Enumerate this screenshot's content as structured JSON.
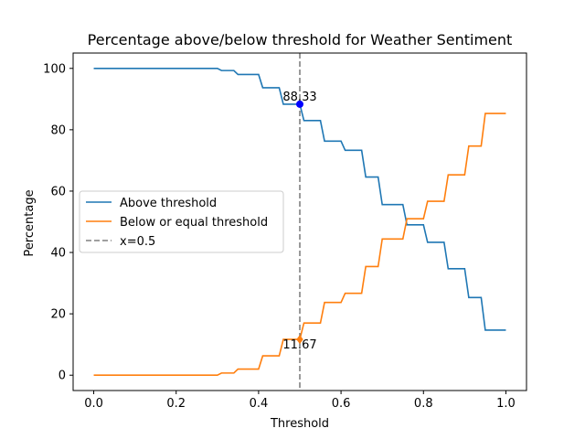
{
  "chart_data": {
    "type": "line",
    "title": "Percentage above/below threshold for Weather Sentiment",
    "xlabel": "Threshold",
    "ylabel": "Percentage",
    "xlim": [
      -0.05,
      1.05
    ],
    "ylim": [
      -5,
      105
    ],
    "x_ticks": [
      0.0,
      0.2,
      0.4,
      0.6,
      0.8,
      1.0
    ],
    "x_tick_labels": [
      "0.0",
      "0.2",
      "0.4",
      "0.6",
      "0.8",
      "1.0"
    ],
    "y_ticks": [
      0,
      20,
      40,
      60,
      80,
      100
    ],
    "y_tick_labels": [
      "0",
      "20",
      "40",
      "60",
      "80",
      "100"
    ],
    "grid": false,
    "legend_position": "center-left",
    "series": [
      {
        "name": "Above threshold",
        "color": "#1f77b4",
        "x": [
          0.0,
          0.3,
          0.31,
          0.34,
          0.35,
          0.4,
          0.41,
          0.45,
          0.46,
          0.5,
          0.51,
          0.55,
          0.56,
          0.6,
          0.61,
          0.65,
          0.66,
          0.69,
          0.7,
          0.75,
          0.76,
          0.8,
          0.81,
          0.85,
          0.86,
          0.9,
          0.91,
          0.94,
          0.95,
          1.0
        ],
        "y": [
          100,
          100,
          99.3,
          99.3,
          98.0,
          98.0,
          93.7,
          93.7,
          88.33,
          88.33,
          83.0,
          83.0,
          76.3,
          76.3,
          73.3,
          73.3,
          64.6,
          64.6,
          55.6,
          55.6,
          49.0,
          49.0,
          43.3,
          43.3,
          34.7,
          34.7,
          25.3,
          25.3,
          14.7,
          14.7
        ]
      },
      {
        "name": "Below or equal threshold",
        "color": "#ff7f0e",
        "x": [
          0.0,
          0.3,
          0.31,
          0.34,
          0.35,
          0.4,
          0.41,
          0.45,
          0.46,
          0.5,
          0.51,
          0.55,
          0.56,
          0.6,
          0.61,
          0.65,
          0.66,
          0.69,
          0.7,
          0.75,
          0.76,
          0.8,
          0.81,
          0.85,
          0.86,
          0.9,
          0.91,
          0.94,
          0.95,
          1.0
        ],
        "y": [
          0,
          0,
          0.7,
          0.7,
          2.0,
          2.0,
          6.3,
          6.3,
          11.67,
          11.67,
          17.0,
          17.0,
          23.7,
          23.7,
          26.7,
          26.7,
          35.4,
          35.4,
          44.4,
          44.4,
          51.0,
          51.0,
          56.7,
          56.7,
          65.3,
          65.3,
          74.7,
          74.7,
          85.3,
          85.3
        ]
      }
    ],
    "vline": {
      "x": 0.5,
      "label": "x=0.5",
      "color": "#808080",
      "style": "dashed"
    },
    "markers": [
      {
        "x": 0.5,
        "y": 88.33,
        "color": "#0000ff",
        "shape": "circle",
        "label": "88.33"
      },
      {
        "x": 0.5,
        "y": 11.67,
        "color": "#ff7f0e",
        "shape": "diamond",
        "label": "11.67"
      }
    ]
  }
}
